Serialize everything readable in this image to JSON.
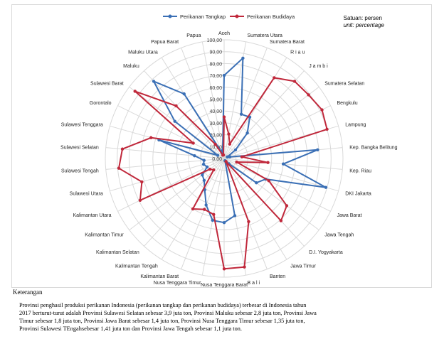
{
  "chart_data": {
    "type": "radar",
    "legend_position": "top",
    "unit_label_id": "Satuan: persen",
    "unit_label_en": "unit: percentage",
    "r_ticks": [
      "0,00",
      "10,00",
      "20,00",
      "30,00",
      "40,00",
      "50,00",
      "60,00",
      "70,00",
      "80,00",
      "90,00",
      "100,00"
    ],
    "rmax": 100,
    "categories": [
      "Aceh",
      "Sumatera Utara",
      "Sumatera Barat",
      "R i a u",
      "J a m b i",
      "Sumatera Selatan",
      "Bengkulu",
      "Lampung",
      "Kep. Bangka Belitung",
      "Kep. Riau",
      "DKI Jakarta",
      "Jawa Barat",
      "Jawa Tengah",
      "D.I. Yogyakarta",
      "Jawa Timur",
      "Banten",
      "B a l i",
      "Nusa Tenggara Barat",
      "Nusa Tenggara Timur",
      "Kalimantan Barat",
      "Kalimantan Tengah",
      "Kalimantan Selatan",
      "Kalimantan Timur",
      "Kalimantan Utara",
      "Sulawesi Utara",
      "Sulawesi Tengah",
      "Sulawesi Selatan",
      "Sulawesi Tenggara",
      "Gorontalo",
      "Sulawesi Barat",
      "Maluku",
      "Maluku Utara",
      "Papua Barat",
      "Papua"
    ],
    "series": [
      {
        "name": "Perikanan Tangkap",
        "color": "#3a6fb5",
        "values": [
          70,
          86,
          40,
          41,
          29,
          12,
          3,
          5,
          79,
          50,
          89,
          39,
          34,
          6,
          4,
          2,
          49,
          54,
          53,
          42,
          31,
          25,
          23,
          16,
          18,
          17,
          25,
          57,
          6,
          52,
          88,
          64,
          5,
          7
        ]
      },
      {
        "name": "Perikanan Budidaya",
        "color": "#c0283b",
        "values": [
          35,
          21,
          13,
          80,
          88,
          89,
          92,
          90,
          15,
          37,
          11,
          42,
          66,
          71,
          3,
          57,
          93,
          93,
          48,
          46,
          50,
          13,
          15,
          79,
          72,
          89,
          86,
          64,
          29,
          94,
          60,
          14,
          3,
          3
        ]
      }
    ]
  },
  "footer": {
    "keterangan": "Keterangan",
    "lines": [
      "Provinsi penghasil produksi perikanan Indonesia (perikanan tangkap dan perikanan budidaya) terbesar di Indonesia tahun",
      "2017 berturut-turut adalah Provinsi Sulawesi Selatan sebesar 3,9 juta ton, Provinsi Maluku sebesar 2,8 juta ton, Provinsi Jawa",
      "Timur sebesar 1,8 juta ton, Provinsi Jawa Barat sebesar 1,4 juta ton, Provinsi Nusa Tenggara Timur sebesar 1,35 juta ton,",
      "Provinsi Sulawesi TEngahsebesar 1,41 juta ton dan Provinsi Jawa Tengah sebesar 1,1 juta ton."
    ]
  }
}
